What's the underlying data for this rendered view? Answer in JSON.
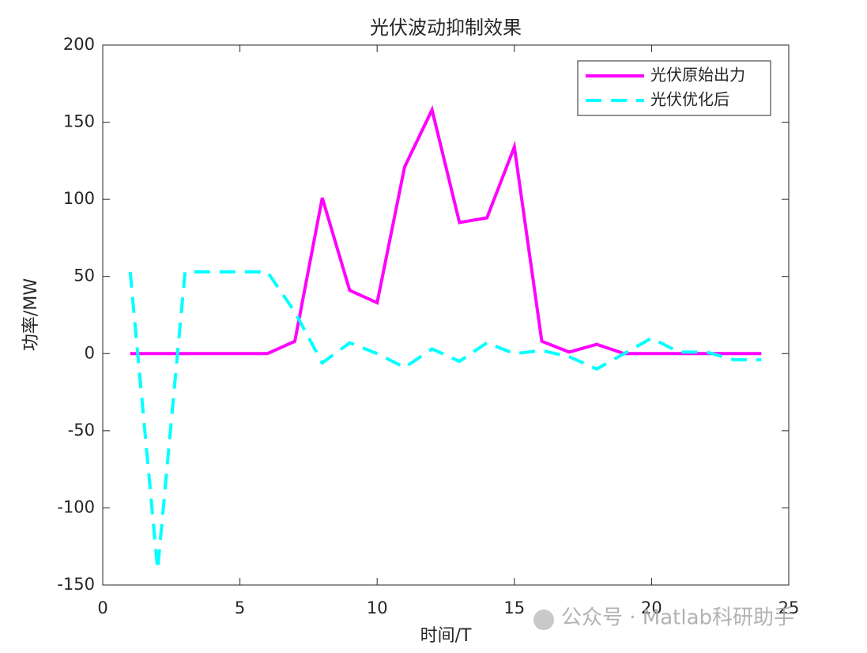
{
  "chart_data": {
    "type": "line",
    "title": "光伏波动抑制效果",
    "x_label": "时间/T",
    "y_label": "功率/MW",
    "x": [
      1,
      2,
      3,
      4,
      5,
      6,
      7,
      8,
      9,
      10,
      11,
      12,
      13,
      14,
      15,
      16,
      17,
      18,
      19,
      20,
      21,
      22,
      23,
      24
    ],
    "series": [
      {
        "name": "光伏原始出力",
        "color": "#ff00ff",
        "dash": "solid",
        "values": [
          0,
          0,
          0,
          0,
          0,
          0,
          8,
          101,
          41,
          33,
          121,
          158,
          85,
          88,
          134,
          8,
          1,
          6,
          0,
          0,
          0,
          0,
          0,
          0
        ]
      },
      {
        "name": "光伏优化后",
        "color": "#00ffff",
        "dash": "dashed",
        "values": [
          53,
          -140,
          53,
          53,
          53,
          53,
          27,
          -6,
          7,
          0,
          -9,
          3,
          -5,
          7,
          0,
          2,
          -2,
          -10,
          0,
          10,
          1,
          1,
          -4,
          -4
        ]
      }
    ],
    "xlim": [
      0,
      25
    ],
    "xticks": [
      0,
      5,
      10,
      15,
      20,
      25
    ],
    "ylim": [
      -150,
      200
    ],
    "yticks": [
      -150,
      -100,
      -50,
      0,
      50,
      100,
      150,
      200
    ],
    "grid": false,
    "legend": "northeast",
    "watermark": "公众号 · Matlab科研助手"
  }
}
